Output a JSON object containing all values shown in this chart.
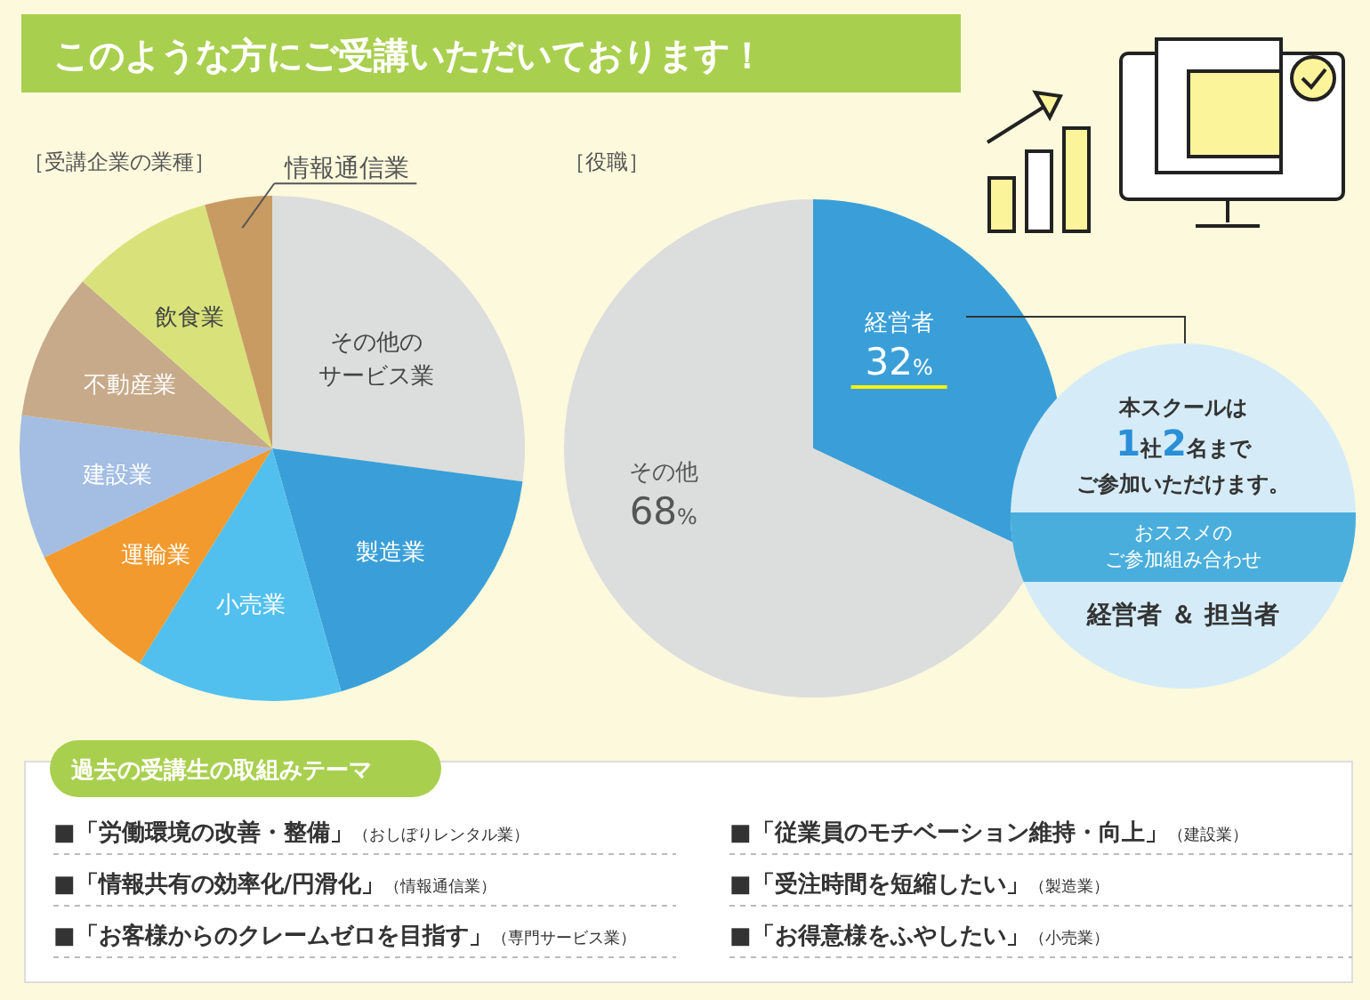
{
  "chart_data": [
    {
      "type": "pie",
      "title": "［受講企業の業種］",
      "annotations": [
        "このような方にご受講いただいております！"
      ],
      "categories": [
        "その他のサービス業",
        "製造業",
        "小売業",
        "運輸業",
        "建設業",
        "不動産業",
        "飲食業",
        "情報通信業"
      ],
      "values": [
        27.1,
        18.5,
        13.2,
        9.1,
        9.2,
        9.4,
        9.2,
        4.3
      ],
      "colors": [
        "#dcdddd",
        "#3a9fd8",
        "#52c0ef",
        "#f29a2e",
        "#a3bde3",
        "#c7aa8a",
        "#d9e27a",
        "#c89b63"
      ]
    },
    {
      "type": "pie",
      "title": "［役職］",
      "categories": [
        "経営者",
        "その他"
      ],
      "values": [
        32,
        68
      ],
      "value_labels": [
        "32%",
        "68%"
      ],
      "colors": [
        "#3a9fd8",
        "#dcdddd"
      ],
      "annotations": [
        "本スクールは",
        "1社2名まで",
        "ご参加いただけます。",
        "おススメのご参加組み合わせ",
        "経営者 ＆ 担当者",
        "過去の受講生の取組みテーマ",
        "■「労働環境の改善・整備」（おしぼりレンタル業）",
        "■「情報共有の効率化/円滑化」（情報通信業）",
        "■「お客様からのクレームゼロを目指す」（専門サービス業）",
        "■「従業員のモチベーション維持・向上」（建設業）",
        "■「受注時間を短縮したい」（製造業）",
        "■「お得意様をふやしたい」（小売業）"
      ]
    }
  ]
}
